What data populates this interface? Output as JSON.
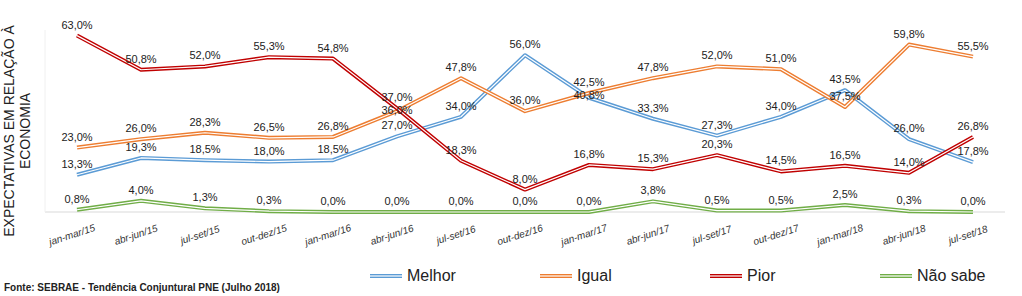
{
  "chart_data": {
    "type": "line",
    "ylabel": "EXPECTATIVAS EM RELAÇÃO À ECONOMIA",
    "source": "Fonte: SEBRAE - Tendência Conjuntural PNE (Julho 2018)",
    "categories": [
      "jan-mar/15",
      "abr-jun/15",
      "jul-set/15",
      "out-dez/15",
      "jan-mar/16",
      "abr-jun/16",
      "jul-set/16",
      "out-dez/16",
      "jan-mar/17",
      "abr-jun/17",
      "jul-set/17",
      "out-dez/17",
      "jan-mar/18",
      "abr-jun/18",
      "jul-set/18"
    ],
    "series": [
      {
        "name": "Melhor",
        "color": "#5b9bd5",
        "values": [
          13.3,
          19.3,
          18.5,
          18.0,
          18.5,
          27.0,
          34.0,
          56.0,
          40.8,
          33.3,
          27.3,
          34.0,
          43.5,
          26.0,
          17.8
        ],
        "value_labels": [
          "13,3%",
          "19,3%",
          "18,5%",
          "18,0%",
          "18,5%",
          "27,0%",
          "34,0%",
          "56,0%",
          "40,8%",
          "33,3%",
          "27,3%",
          "34,0%",
          "43,5%",
          "26,0%",
          "17,8%"
        ]
      },
      {
        "name": "Igual",
        "color": "#ed7d31",
        "values": [
          23.0,
          26.0,
          28.3,
          26.5,
          26.8,
          36.0,
          47.8,
          36.0,
          42.5,
          47.8,
          52.0,
          51.0,
          37.5,
          59.8,
          55.5
        ],
        "value_labels": [
          "23,0%",
          "26,0%",
          "28,3%",
          "26,5%",
          "26,8%",
          "36,0%",
          "47,8%",
          "36,0%",
          "42,5%",
          "47,8%",
          "52,0%",
          "51,0%",
          "37,5%",
          "59,8%",
          "55,5%"
        ]
      },
      {
        "name": "Pior",
        "color": "#c00000",
        "values": [
          63.0,
          50.8,
          52.0,
          55.3,
          54.8,
          37.0,
          18.3,
          8.0,
          16.8,
          15.3,
          20.3,
          14.5,
          16.5,
          14.0,
          26.8
        ],
        "value_labels": [
          "63,0%",
          "50,8%",
          "52,0%",
          "55,3%",
          "54,8%",
          "37,0%",
          "18,3%",
          "8,0%",
          "16,8%",
          "15,3%",
          "20,3%",
          "14,5%",
          "16,5%",
          "14,0%",
          "26,8%"
        ]
      },
      {
        "name": "Não sabe",
        "color": "#70ad47",
        "values": [
          0.8,
          4.0,
          1.3,
          0.3,
          0.0,
          0.0,
          0.0,
          0.0,
          0.0,
          3.8,
          0.5,
          0.5,
          2.5,
          0.3,
          0.0
        ],
        "value_labels": [
          "0,8%",
          "4,0%",
          "1,3%",
          "0,3%",
          "0,0%",
          "0,0%",
          "0,0%",
          "0,0%",
          "0,0%",
          "3,8%",
          "0,5%",
          "0,5%",
          "2,5%",
          "0,3%",
          "0,0%"
        ]
      }
    ],
    "ylim": [
      0,
      65
    ],
    "tick_labels": "x",
    "grid": false,
    "data_labels": true,
    "legend": "bottom"
  }
}
